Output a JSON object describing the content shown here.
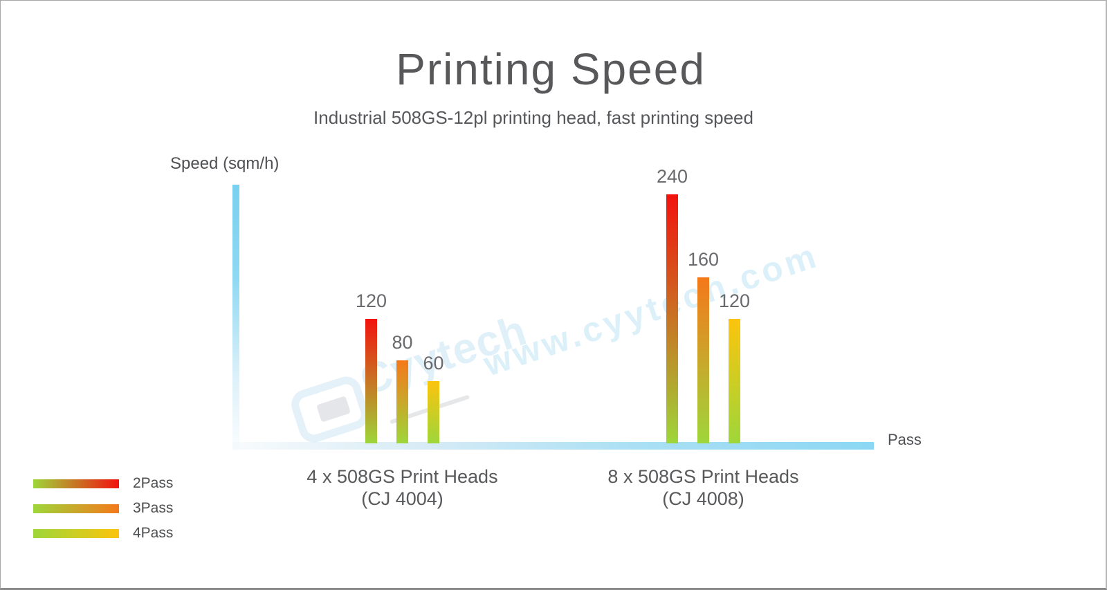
{
  "chart_data": {
    "type": "bar",
    "title": "Printing Speed",
    "subtitle": "Industrial 508GS-12pl printing head, fast printing speed",
    "ylabel": "Speed (sqm/h)",
    "xlabel": "Pass",
    "grid": false,
    "legend_position": "bottom-left",
    "axis_color": "#8bd7f3",
    "ylim": [
      0,
      260
    ],
    "series": [
      {
        "name": "2Pass",
        "color_top": "#f2120e",
        "color_bottom": "#9ed63a"
      },
      {
        "name": "3Pass",
        "color_top": "#f5781a",
        "color_bottom": "#9ed63a"
      },
      {
        "name": "4Pass",
        "color_top": "#fcc40d",
        "color_bottom": "#9ed63a"
      }
    ],
    "groups": [
      {
        "label": "4 x 508GS Print Heads",
        "sublabel": "(CJ 4004)",
        "values": [
          120,
          80,
          60
        ]
      },
      {
        "label": "8 x 508GS Print Heads",
        "sublabel": "(CJ 4008)",
        "values": [
          240,
          160,
          120
        ]
      }
    ]
  },
  "watermark": {
    "main_text": "www.cyytech.com",
    "logo_text": "Cyytech",
    "color": "#8fd3ee"
  }
}
